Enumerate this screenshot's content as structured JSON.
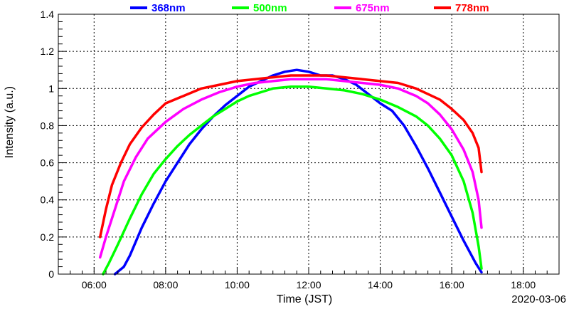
{
  "chart_data": {
    "type": "line",
    "xlabel": "Time (JST)",
    "ylabel": "Intensity (a.u.)",
    "date": "2020-03-06",
    "xlim": [
      "05:00",
      "19:00"
    ],
    "ylim": [
      0,
      1.4
    ],
    "x_ticks": [
      "06:00",
      "08:00",
      "10:00",
      "12:00",
      "14:00",
      "16:00",
      "18:00"
    ],
    "y_ticks": [
      "0",
      "0.2",
      "0.4",
      "0.6",
      "0.8",
      "1",
      "1.2",
      "1.4"
    ],
    "grid": true,
    "legend_position": "top",
    "series": [
      {
        "name": "368nm",
        "color": "#0000ff",
        "points": [
          [
            "06:35",
            0.0
          ],
          [
            "06:50",
            0.04
          ],
          [
            "07:00",
            0.1
          ],
          [
            "07:20",
            0.25
          ],
          [
            "07:40",
            0.38
          ],
          [
            "08:00",
            0.5
          ],
          [
            "08:20",
            0.6
          ],
          [
            "08:40",
            0.7
          ],
          [
            "09:00",
            0.78
          ],
          [
            "09:20",
            0.85
          ],
          [
            "09:40",
            0.91
          ],
          [
            "10:00",
            0.96
          ],
          [
            "10:20",
            1.01
          ],
          [
            "10:40",
            1.04
          ],
          [
            "11:00",
            1.07
          ],
          [
            "11:20",
            1.09
          ],
          [
            "11:40",
            1.1
          ],
          [
            "12:00",
            1.09
          ],
          [
            "12:20",
            1.07
          ],
          [
            "12:40",
            1.07
          ],
          [
            "13:00",
            1.05
          ],
          [
            "13:20",
            1.02
          ],
          [
            "13:40",
            0.97
          ],
          [
            "14:00",
            0.92
          ],
          [
            "14:20",
            0.88
          ],
          [
            "14:40",
            0.8
          ],
          [
            "15:00",
            0.69
          ],
          [
            "15:20",
            0.57
          ],
          [
            "15:40",
            0.44
          ],
          [
            "16:00",
            0.31
          ],
          [
            "16:20",
            0.18
          ],
          [
            "16:40",
            0.06
          ],
          [
            "16:50",
            0.01
          ]
        ]
      },
      {
        "name": "500nm",
        "color": "#00ff00",
        "points": [
          [
            "06:15",
            0.0
          ],
          [
            "06:25",
            0.06
          ],
          [
            "06:40",
            0.16
          ],
          [
            "07:00",
            0.3
          ],
          [
            "07:20",
            0.43
          ],
          [
            "07:40",
            0.54
          ],
          [
            "08:00",
            0.62
          ],
          [
            "08:20",
            0.69
          ],
          [
            "08:40",
            0.75
          ],
          [
            "09:00",
            0.8
          ],
          [
            "09:20",
            0.85
          ],
          [
            "09:40",
            0.89
          ],
          [
            "10:00",
            0.93
          ],
          [
            "10:20",
            0.96
          ],
          [
            "10:40",
            0.98
          ],
          [
            "11:00",
            1.0
          ],
          [
            "11:30",
            1.01
          ],
          [
            "12:00",
            1.01
          ],
          [
            "12:30",
            1.0
          ],
          [
            "13:00",
            0.99
          ],
          [
            "13:30",
            0.97
          ],
          [
            "14:00",
            0.94
          ],
          [
            "14:30",
            0.9
          ],
          [
            "15:00",
            0.85
          ],
          [
            "15:20",
            0.8
          ],
          [
            "15:40",
            0.73
          ],
          [
            "16:00",
            0.64
          ],
          [
            "16:20",
            0.5
          ],
          [
            "16:35",
            0.33
          ],
          [
            "16:45",
            0.15
          ],
          [
            "16:50",
            0.03
          ]
        ]
      },
      {
        "name": "675nm",
        "color": "#ff00ff",
        "points": [
          [
            "06:10",
            0.09
          ],
          [
            "06:20",
            0.2
          ],
          [
            "06:35",
            0.35
          ],
          [
            "06:50",
            0.5
          ],
          [
            "07:10",
            0.63
          ],
          [
            "07:30",
            0.73
          ],
          [
            "08:00",
            0.82
          ],
          [
            "08:30",
            0.89
          ],
          [
            "09:00",
            0.94
          ],
          [
            "09:30",
            0.98
          ],
          [
            "10:00",
            1.01
          ],
          [
            "10:30",
            1.03
          ],
          [
            "11:00",
            1.04
          ],
          [
            "11:30",
            1.05
          ],
          [
            "12:00",
            1.05
          ],
          [
            "12:30",
            1.05
          ],
          [
            "13:00",
            1.04
          ],
          [
            "13:30",
            1.03
          ],
          [
            "14:00",
            1.02
          ],
          [
            "14:30",
            1.0
          ],
          [
            "15:00",
            0.96
          ],
          [
            "15:20",
            0.92
          ],
          [
            "15:40",
            0.86
          ],
          [
            "16:00",
            0.78
          ],
          [
            "16:20",
            0.67
          ],
          [
            "16:35",
            0.55
          ],
          [
            "16:45",
            0.4
          ],
          [
            "16:50",
            0.25
          ]
        ]
      },
      {
        "name": "778nm",
        "color": "#ff0000",
        "points": [
          [
            "06:10",
            0.2
          ],
          [
            "06:20",
            0.35
          ],
          [
            "06:30",
            0.48
          ],
          [
            "06:45",
            0.6
          ],
          [
            "07:00",
            0.7
          ],
          [
            "07:20",
            0.79
          ],
          [
            "07:40",
            0.86
          ],
          [
            "08:00",
            0.92
          ],
          [
            "08:30",
            0.96
          ],
          [
            "09:00",
            1.0
          ],
          [
            "09:30",
            1.02
          ],
          [
            "10:00",
            1.04
          ],
          [
            "10:30",
            1.05
          ],
          [
            "11:00",
            1.06
          ],
          [
            "11:30",
            1.07
          ],
          [
            "12:00",
            1.07
          ],
          [
            "12:30",
            1.07
          ],
          [
            "13:00",
            1.06
          ],
          [
            "13:30",
            1.05
          ],
          [
            "14:00",
            1.04
          ],
          [
            "14:30",
            1.03
          ],
          [
            "15:00",
            1.0
          ],
          [
            "15:20",
            0.97
          ],
          [
            "15:40",
            0.94
          ],
          [
            "16:00",
            0.89
          ],
          [
            "16:20",
            0.83
          ],
          [
            "16:35",
            0.76
          ],
          [
            "16:45",
            0.68
          ],
          [
            "16:50",
            0.55
          ]
        ]
      }
    ]
  }
}
